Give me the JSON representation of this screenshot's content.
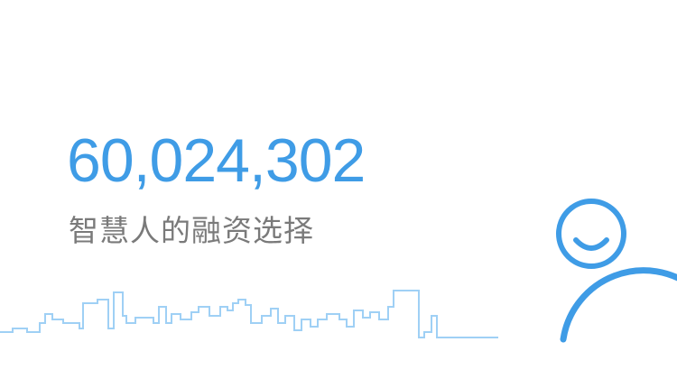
{
  "hero": {
    "user_count": "60,024,302",
    "tagline": "智慧人的融资选择"
  },
  "colors": {
    "accent": "#3f9ce6",
    "skyline": "#9fd0f5",
    "tagline_text": "#7a7a7a",
    "background": "#ffffff"
  },
  "decorations": {
    "skyline_icon": "city-skyline-outline",
    "mascot_icon": "smiling-person-outline"
  }
}
